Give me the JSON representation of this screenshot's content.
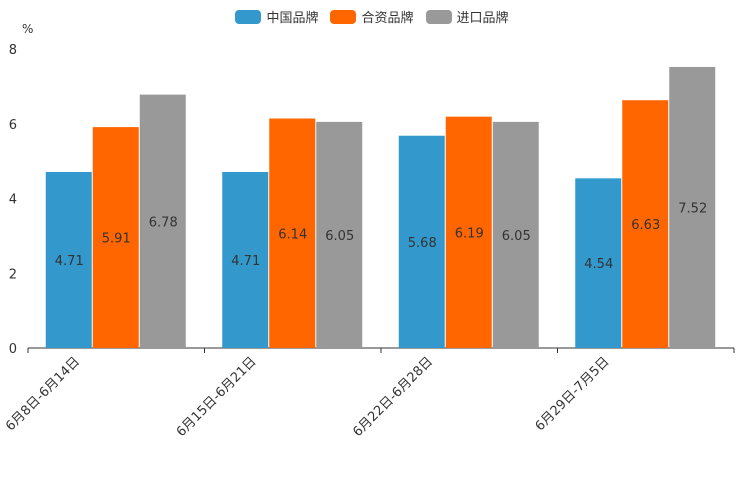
{
  "chart_data": {
    "type": "bar",
    "title": "",
    "ylabel": "%",
    "xlabel": "",
    "ylim": [
      0,
      8
    ],
    "yticks": [
      0,
      2,
      4,
      6,
      8
    ],
    "categories": [
      "6月8日-6月14日",
      "6月15日-6月21日",
      "6月22日-6月28日",
      "6月29日-7月5日"
    ],
    "series": [
      {
        "name": "中国品牌",
        "color": "#3399cc",
        "values": [
          4.71,
          4.71,
          5.68,
          4.54
        ]
      },
      {
        "name": "合资品牌",
        "color": "#ff6600",
        "values": [
          5.91,
          6.14,
          6.19,
          6.63
        ]
      },
      {
        "name": "进口品牌",
        "color": "#999999",
        "values": [
          6.78,
          6.05,
          6.05,
          7.52
        ]
      }
    ],
    "legend_position": "top-center"
  }
}
